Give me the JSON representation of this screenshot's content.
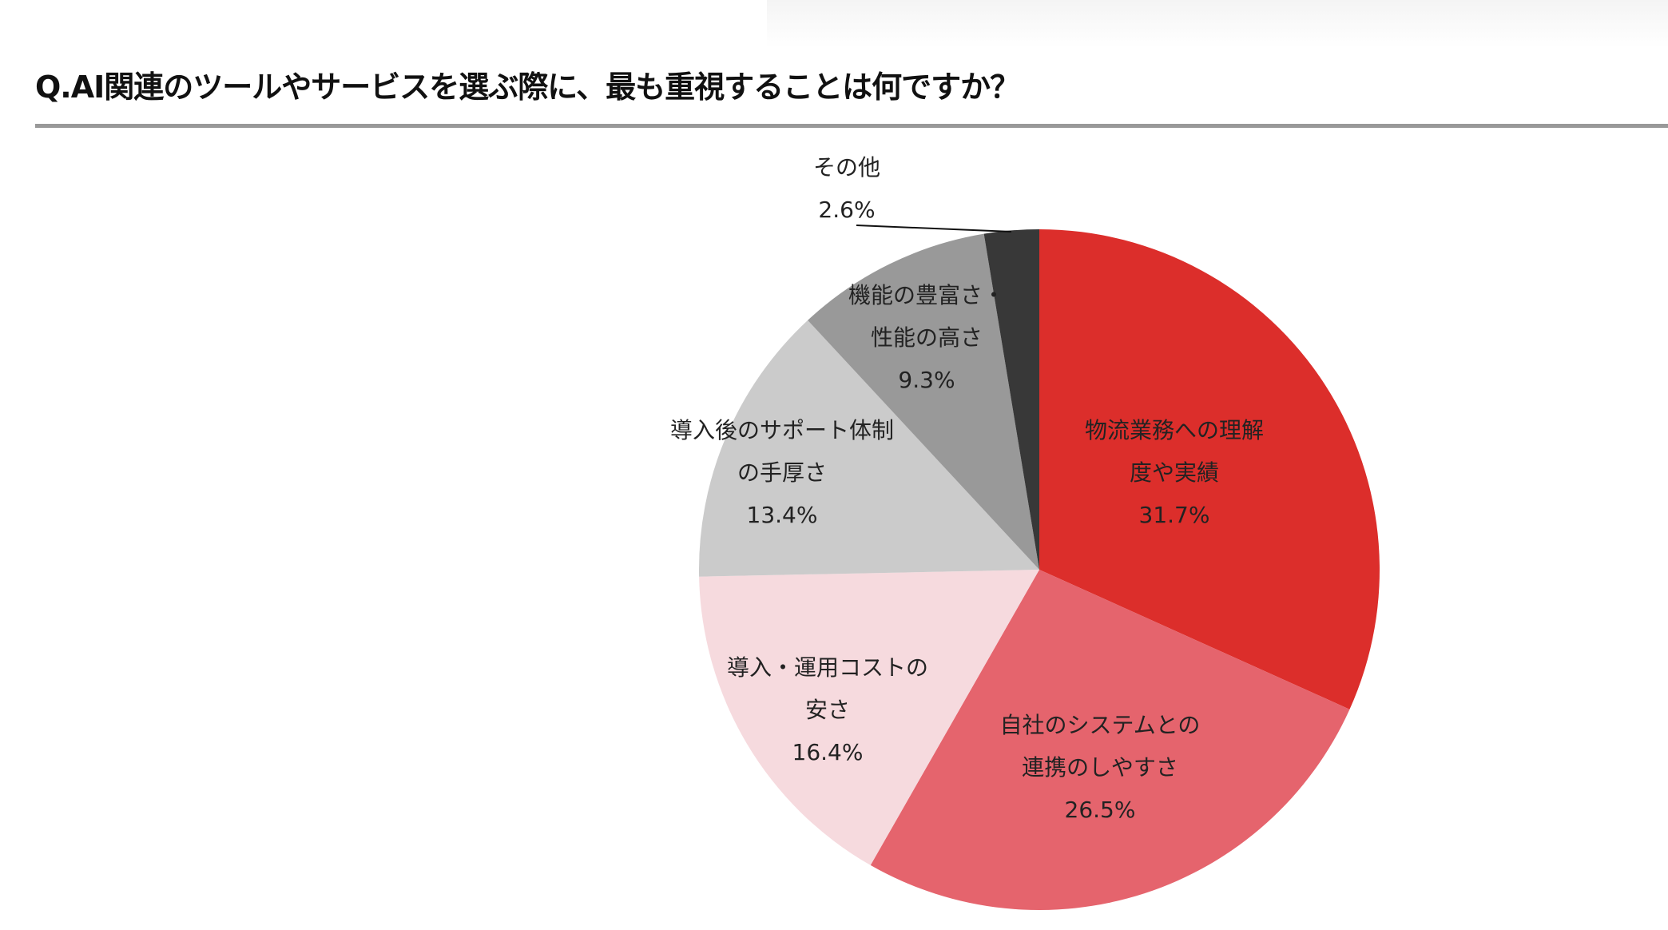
{
  "title": "Q.AI関連のツールやサービスを選ぶ際に、最も重視することは何ですか？",
  "chart_data": {
    "type": "pie",
    "title": "Q.AI関連のツールやサービスを選ぶ際に、最も重視することは何ですか？",
    "start": "top",
    "direction": "clockwise",
    "slices": [
      {
        "lines": [
          "物流業務への理解",
          "度や実績"
        ],
        "value": 31.7,
        "value_label": "31.7%",
        "color": "#dc2e2b"
      },
      {
        "lines": [
          "自社のシステムとの",
          "連携のしやすさ"
        ],
        "value": 26.5,
        "value_label": "26.5%",
        "color": "#e5646d"
      },
      {
        "lines": [
          "導入・運用コストの",
          "安さ"
        ],
        "value": 16.4,
        "value_label": "16.4%",
        "color": "#f6dade"
      },
      {
        "lines": [
          "導入後のサポート体制",
          "の手厚さ"
        ],
        "value": 13.4,
        "value_label": "13.4%",
        "color": "#cbcbcb"
      },
      {
        "lines": [
          "機能の豊富さ・",
          "性能の高さ"
        ],
        "value": 9.3,
        "value_label": "9.3%",
        "color": "#999999"
      },
      {
        "lines": [
          "その他"
        ],
        "value": 2.6,
        "value_label": "2.6%",
        "color": "#383838"
      }
    ]
  }
}
